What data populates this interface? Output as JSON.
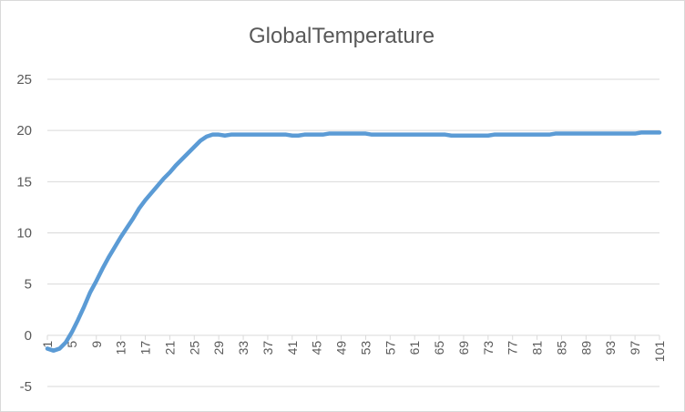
{
  "chart_data": {
    "type": "line",
    "title": "GlobalTemperature",
    "xlabel": "",
    "ylabel": "",
    "ylim": [
      -5,
      25
    ],
    "yticks": [
      25,
      20,
      15,
      10,
      5,
      0,
      -5
    ],
    "xticks": [
      1,
      5,
      9,
      13,
      17,
      21,
      25,
      29,
      33,
      37,
      41,
      45,
      49,
      53,
      57,
      61,
      65,
      69,
      73,
      77,
      81,
      85,
      89,
      93,
      97,
      101
    ],
    "grid": "horizontal",
    "legend": "none",
    "series": [
      {
        "color": "#5b9bd5",
        "x": [
          1,
          2,
          3,
          4,
          5,
          6,
          7,
          8,
          9,
          10,
          11,
          12,
          13,
          14,
          15,
          16,
          17,
          18,
          19,
          20,
          21,
          22,
          23,
          24,
          25,
          26,
          27,
          28,
          29,
          30,
          31,
          32,
          33,
          34,
          35,
          36,
          37,
          38,
          39,
          40,
          41,
          42,
          43,
          44,
          45,
          46,
          47,
          48,
          49,
          50,
          51,
          52,
          53,
          54,
          55,
          56,
          57,
          58,
          59,
          60,
          61,
          62,
          63,
          64,
          65,
          66,
          67,
          68,
          69,
          70,
          71,
          72,
          73,
          74,
          75,
          76,
          77,
          78,
          79,
          80,
          81,
          82,
          83,
          84,
          85,
          86,
          87,
          88,
          89,
          90,
          91,
          92,
          93,
          94,
          95,
          96,
          97,
          98,
          99,
          100,
          101
        ],
        "values": [
          -1.3,
          -1.5,
          -1.3,
          -0.7,
          0.3,
          1.5,
          2.8,
          4.2,
          5.3,
          6.5,
          7.6,
          8.6,
          9.6,
          10.5,
          11.4,
          12.4,
          13.2,
          13.9,
          14.6,
          15.3,
          15.9,
          16.6,
          17.2,
          17.8,
          18.4,
          19.0,
          19.4,
          19.6,
          19.6,
          19.5,
          19.6,
          19.6,
          19.6,
          19.6,
          19.6,
          19.6,
          19.6,
          19.6,
          19.6,
          19.6,
          19.5,
          19.5,
          19.6,
          19.6,
          19.6,
          19.6,
          19.7,
          19.7,
          19.7,
          19.7,
          19.7,
          19.7,
          19.7,
          19.6,
          19.6,
          19.6,
          19.6,
          19.6,
          19.6,
          19.6,
          19.6,
          19.6,
          19.6,
          19.6,
          19.6,
          19.6,
          19.5,
          19.5,
          19.5,
          19.5,
          19.5,
          19.5,
          19.5,
          19.6,
          19.6,
          19.6,
          19.6,
          19.6,
          19.6,
          19.6,
          19.6,
          19.6,
          19.6,
          19.7,
          19.7,
          19.7,
          19.7,
          19.7,
          19.7,
          19.7,
          19.7,
          19.7,
          19.7,
          19.7,
          19.7,
          19.7,
          19.7,
          19.8,
          19.8,
          19.8,
          19.8
        ]
      }
    ]
  }
}
